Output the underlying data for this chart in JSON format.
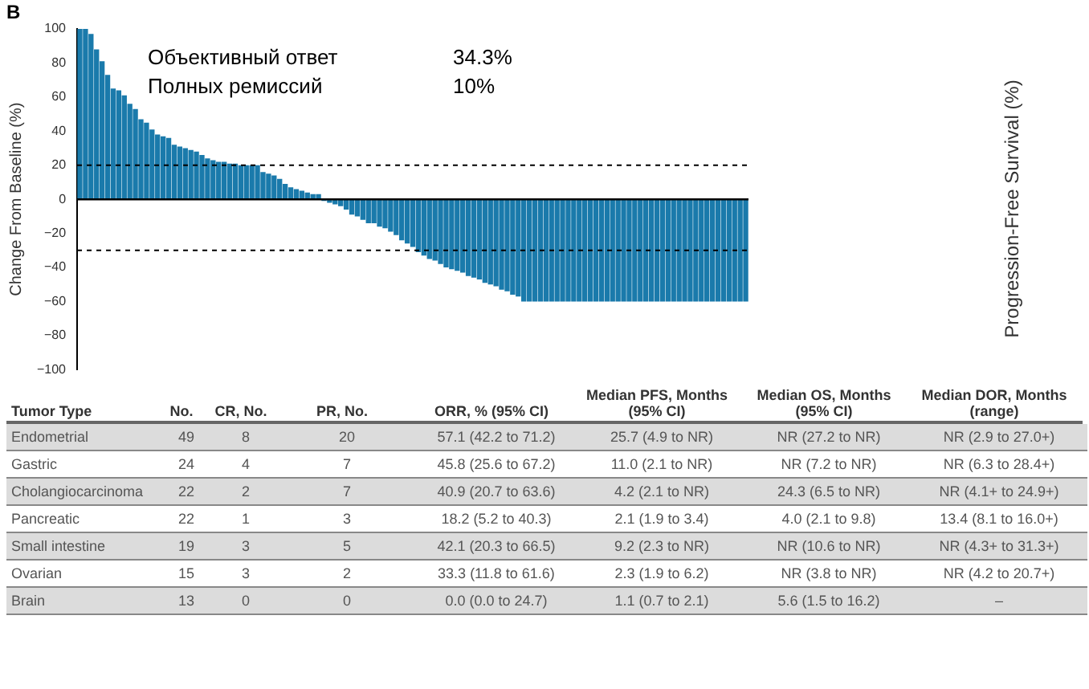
{
  "chart_data": [
    {
      "type": "bar",
      "title": "B",
      "ylabel": "Change From Baseline (%)",
      "color": "#1a7aab",
      "grid": false,
      "legend": false,
      "tick_labels": "y",
      "categories": [
        null,
        null,
        null,
        null,
        null,
        null,
        null,
        null,
        null,
        null,
        null,
        null,
        null,
        null,
        null,
        null,
        null,
        null,
        null,
        null,
        null,
        null,
        null,
        null,
        null,
        null,
        null,
        null,
        null,
        null,
        null,
        null,
        null,
        null,
        null,
        null,
        null,
        null,
        null,
        null,
        null,
        null,
        null,
        null,
        null,
        null,
        null,
        null,
        null,
        null,
        null,
        null,
        null,
        null,
        null,
        null,
        null,
        null,
        null,
        null,
        null,
        null,
        null,
        null,
        null,
        null,
        null,
        null,
        null,
        null,
        null,
        null,
        null,
        null,
        null,
        null,
        null,
        null,
        null,
        null,
        null,
        null,
        null,
        null,
        null,
        null,
        null,
        null,
        null,
        null,
        null,
        null,
        null,
        null,
        null,
        null,
        null,
        null,
        null,
        null,
        null,
        null,
        null,
        null,
        null,
        null,
        null,
        null,
        null,
        null,
        null,
        null,
        null,
        null,
        null,
        null,
        null,
        null,
        null,
        null,
        null
      ],
      "values": [
        100,
        100,
        97,
        88,
        81,
        73,
        65,
        64,
        61,
        56,
        53,
        47,
        45,
        41,
        38,
        37,
        36,
        32,
        31,
        30,
        29,
        28,
        26,
        24,
        23,
        22,
        22,
        21,
        21,
        20,
        20,
        20,
        20,
        16,
        15,
        14,
        12,
        9,
        7,
        6,
        5,
        4,
        3,
        3,
        -1,
        -2,
        -3,
        -4,
        -6,
        -9,
        -10,
        -12,
        -14,
        -14,
        -16,
        -17,
        -19,
        -21,
        -24,
        -26,
        -28,
        -31,
        -33,
        -35,
        -36,
        -38,
        -40,
        -41,
        -42,
        -43,
        -45,
        -46,
        -47,
        -49,
        -50,
        -51,
        -53,
        -54,
        -56,
        -57,
        -60,
        -60,
        -60,
        -60,
        -60,
        -60,
        -60,
        -60,
        -60,
        -60,
        -60,
        -60,
        -60,
        -60,
        -60,
        -60,
        -60,
        -60,
        -60,
        -60,
        -60,
        -60,
        -60,
        -60,
        -60,
        -60,
        -60,
        -60,
        -60,
        -60,
        -60,
        -60,
        -60,
        -60,
        -60,
        -60,
        -60,
        -60,
        -60,
        -60,
        -60
      ],
      "ylim": [
        -100,
        100
      ],
      "yticks": [
        -100,
        -80,
        -60,
        -40,
        -20,
        0,
        20,
        40,
        60,
        80,
        100
      ],
      "ref_lines": [
        {
          "axis": "y",
          "value": 20,
          "line_style": "dashed",
          "color": "#000000"
        },
        {
          "axis": "y",
          "value": -30,
          "line_style": "dashed",
          "color": "#000000"
        }
      ],
      "annotations": [
        "Объективный ответ",
        "34.3%",
        "Полных ремиссий",
        "10%"
      ]
    },
    {
      "type": "other",
      "categories": [
        "Tumor Type",
        "No.",
        "CR, No.",
        "PR, No.",
        "ORR, % (95% CI)",
        "Median PFS, Months (95% CI)",
        "Median OS, Months (95% CI)",
        "Median DOR, Months (range)"
      ],
      "cell_labels": [
        [
          "Endometrial",
          "49",
          "8",
          "20",
          "57.1 (42.2 to 71.2)",
          "25.7 (4.9 to NR)",
          "NR (27.2 to NR)",
          "NR (2.9 to 27.0+)"
        ],
        [
          "Gastric",
          "24",
          "4",
          "7",
          "45.8 (25.6 to 67.2)",
          "11.0 (2.1 to NR)",
          "NR (7.2 to NR)",
          "NR (6.3 to 28.4+)"
        ],
        [
          "Cholangiocarcinoma",
          "22",
          "2",
          "7",
          "40.9 (20.7 to 63.6)",
          "4.2 (2.1 to NR)",
          "24.3 (6.5 to NR)",
          "NR (4.1+ to 24.9+)"
        ],
        [
          "Pancreatic",
          "22",
          "1",
          "3",
          "18.2 (5.2 to 40.3)",
          "2.1 (1.9 to 3.4)",
          "4.0 (2.1 to 9.8)",
          "13.4 (8.1 to 16.0+)"
        ],
        [
          "Small intestine",
          "19",
          "3",
          "5",
          "42.1 (20.3 to 66.5)",
          "9.2 (2.3 to NR)",
          "NR (10.6 to NR)",
          "NR (4.3+ to 31.3+)"
        ],
        [
          "Ovarian",
          "15",
          "3",
          "2",
          "33.3 (11.8 to 61.6)",
          "2.3 (1.9 to 6.2)",
          "NR (3.8 to NR)",
          "NR (4.2 to 20.7+)"
        ],
        [
          "Brain",
          "13",
          "0",
          "0",
          "0.0 (0.0 to 24.7)",
          "1.1 (0.7 to 2.1)",
          "5.6 (1.5 to 16.2)",
          "–"
        ]
      ]
    },
    {
      "type": "other",
      "ylabel": "Progression-Free Survival (%)"
    }
  ]
}
